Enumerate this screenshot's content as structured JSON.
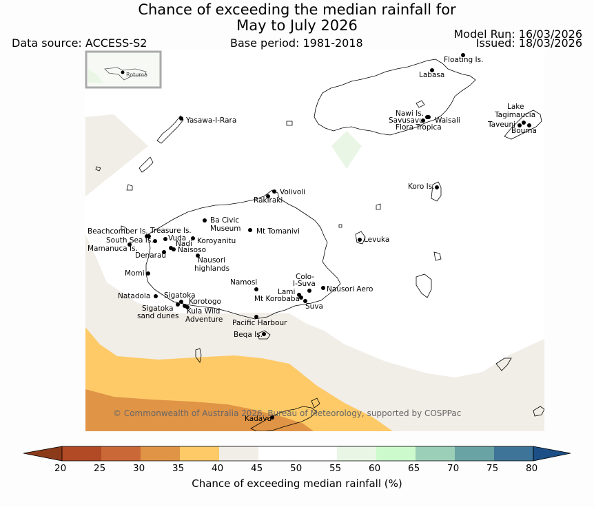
{
  "title_line1": "Chance of exceeding the median rainfall for",
  "title_line2": "May to July 2026",
  "data_source": "Data source: ACCESS-S2",
  "base_period": "Base period: 1981-2018",
  "model_run": "Model Run: 16/03/2026",
  "issued": "Issued: 18/03/2026",
  "inset_label": "Rotuma",
  "copyright": "© Commonwealth of Australia 2026, Bureau of Meteorology, supported by COSPPac",
  "places": {
    "floating_is": "Floating Is.",
    "labasa": "Labasa",
    "yasawa": "Yasawa-I-Rara",
    "nawi": "Nawi Is.",
    "savusavu": "Savusavu",
    "waisali": "Waisali",
    "flora": "Flora Tropica",
    "lake_tag1": "Lake",
    "lake_tag2": "Tagimaucia",
    "taveuni": "Taveuni",
    "bouma": "Bouma",
    "koro": "Koro Is.",
    "volivoli": "Volivoli",
    "rakiraki": "Rakiraki",
    "ba_civic1": "Ba Civic",
    "ba_civic2": "Museum",
    "tomanivi": "Mt Tomanivi",
    "beachcomber": "Beachcomber Is.",
    "treasure": "Treasure Is.",
    "south_sea": "South Sea Is.",
    "vuda": "Vuda",
    "koroyanitu": "Koroyanitu",
    "nadi": "Nadi",
    "mamanuca": "Mamanuca Is.",
    "naisoso": "Naisoso",
    "denarau": "Denarau",
    "levuka": "Levuka",
    "nausori_h1": "Nausori",
    "nausori_h2": "highlands",
    "momi": "Momi",
    "namosi": "Namosi",
    "colo1": "Colo-",
    "colo2": "I-Suva",
    "lami": "Lami",
    "nausori_aero": "Nausori Aero",
    "natadola": "Natadola",
    "sigatoka": "Sigatoka",
    "korotogo": "Korotogo",
    "korobaba": "Mt Korobaba",
    "suva": "Suva",
    "dunes1": "Sigatoka",
    "dunes2": "sand dunes",
    "kula1": "Kula Wild",
    "kula2": "Adventure",
    "pacific": "Pacific Harbour",
    "beqa": "Beqa Is.",
    "kadavu": "Kadavu"
  },
  "colorbar": {
    "label": "Chance of exceeding median rainfall (%)",
    "ticks": [
      "20",
      "25",
      "30",
      "35",
      "40",
      "45",
      "50",
      "55",
      "60",
      "65",
      "70",
      "75",
      "80"
    ],
    "colors": {
      "under": "#8b3a1a",
      "c20_25": "#b14a25",
      "c25_30": "#ca6838",
      "c30_35": "#e09446",
      "c35_40": "#fdca67",
      "c40_45": "#f1ede7",
      "c45_50": "#ffffff",
      "c50_55": "#ffffff",
      "c55_60": "#e9f6e6",
      "c60_65": "#ccfacc",
      "c65_70": "#9bcfb7",
      "c70_75": "#69a3a3",
      "c75_80": "#3e7497",
      "over": "#1b4f85"
    }
  }
}
